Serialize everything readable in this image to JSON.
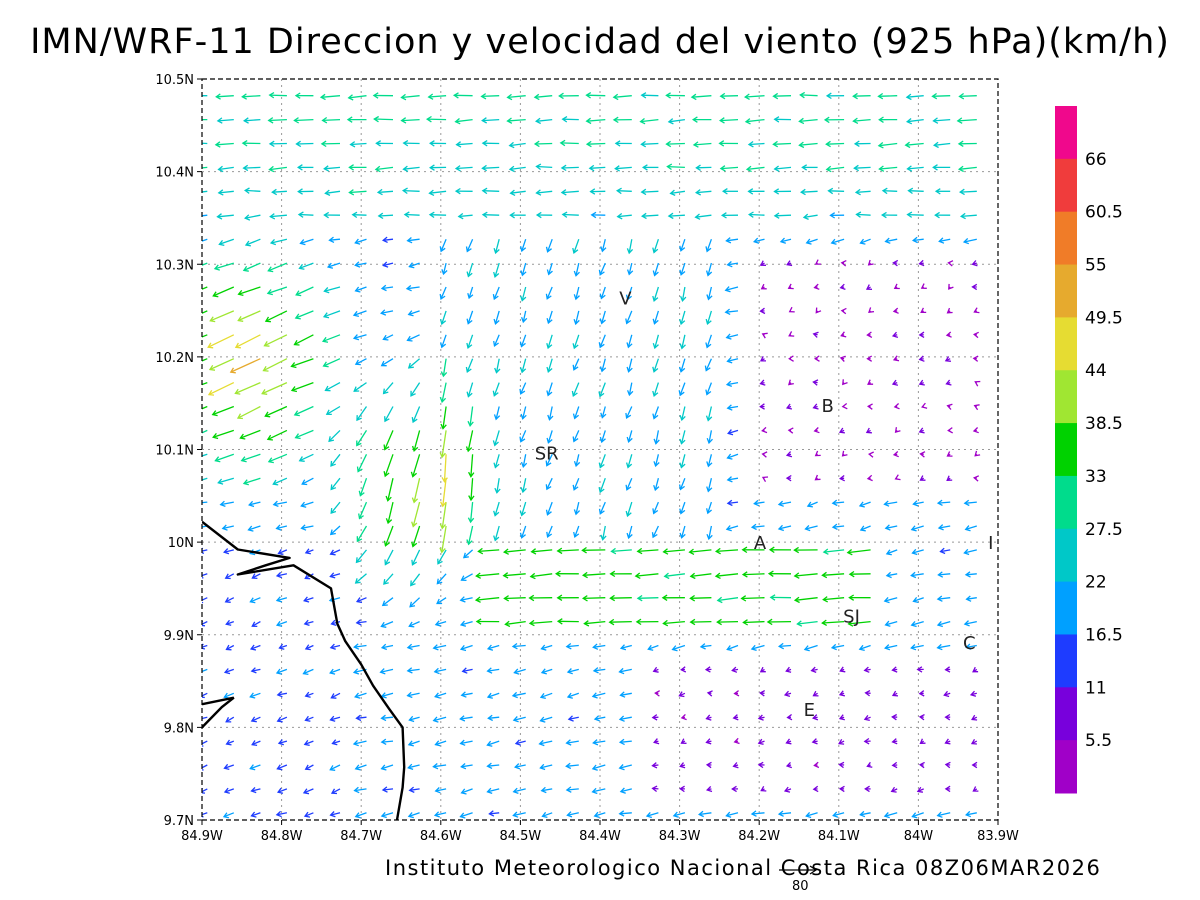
{
  "title": "IMN/WRF-11 Direccion y velocidad del viento (925 hPa)(km/h)",
  "footer": "Instituto Meteorologico Nacional Costa Rica 08Z06MAR2026",
  "reference_vector_label": "80",
  "axes": {
    "x_ticks": [
      "84.9W",
      "84.8W",
      "84.7W",
      "84.6W",
      "84.5W",
      "84.4W",
      "84.3W",
      "84.2W",
      "84.1W",
      "84W",
      "83.9W"
    ],
    "y_ticks": [
      "10.5N",
      "10.4N",
      "10.3N",
      "10.2N",
      "10.1N",
      "10N",
      "9.9N",
      "9.8N",
      "9.7N"
    ],
    "lon_range": [
      -84.9,
      -83.9
    ],
    "lat_range": [
      9.7,
      10.5
    ]
  },
  "colorbar": {
    "labels": [
      "66",
      "60.5",
      "55",
      "49.5",
      "44",
      "38.5",
      "33",
      "27.5",
      "22",
      "16.5",
      "11",
      "5.5"
    ],
    "colors": [
      "#f0088c",
      "#f03c3c",
      "#f07c28",
      "#e6aa2e",
      "#e6dc32",
      "#a0e632",
      "#00d200",
      "#00dc8c",
      "#00c8c8",
      "#00a0ff",
      "#1e3cff",
      "#7800dc",
      "#a000c8"
    ]
  },
  "cities": [
    {
      "label": "V",
      "lon": -84.368,
      "lat": 10.264
    },
    {
      "label": "SR",
      "lon": -84.467,
      "lat": 10.097
    },
    {
      "label": "B",
      "lon": -84.114,
      "lat": 10.148
    },
    {
      "label": "A",
      "lon": -84.199,
      "lat": 10.0
    },
    {
      "label": "I",
      "lon": -83.909,
      "lat": 10.0
    },
    {
      "label": "SJ",
      "lon": -84.084,
      "lat": 9.921
    },
    {
      "label": "C",
      "lon": -83.936,
      "lat": 9.892
    },
    {
      "label": "E",
      "lon": -84.137,
      "lat": 9.82
    }
  ],
  "coastline": [
    [
      -84.9,
      10.022
    ],
    [
      -84.855,
      9.992
    ],
    [
      -84.79,
      9.983
    ],
    [
      -84.82,
      9.975
    ],
    [
      -84.855,
      9.965
    ],
    [
      -84.785,
      9.975
    ],
    [
      -84.738,
      9.95
    ],
    [
      -84.73,
      9.912
    ],
    [
      -84.72,
      9.893
    ],
    [
      -84.7,
      9.868
    ],
    [
      -84.685,
      9.845
    ],
    [
      -84.665,
      9.82
    ],
    [
      -84.648,
      9.8
    ],
    [
      -84.646,
      9.757
    ],
    [
      -84.648,
      9.735
    ],
    [
      -84.655,
      9.7
    ]
  ],
  "coastline_south": [
    [
      -84.9,
      9.8
    ],
    [
      -84.875,
      9.822
    ],
    [
      -84.86,
      9.832
    ],
    [
      -84.9,
      9.825
    ]
  ],
  "wind_field": {
    "source": "approximate reconstruction of 925 hPa wind vectors",
    "grid_cols": 30,
    "grid_rows": 31
  }
}
